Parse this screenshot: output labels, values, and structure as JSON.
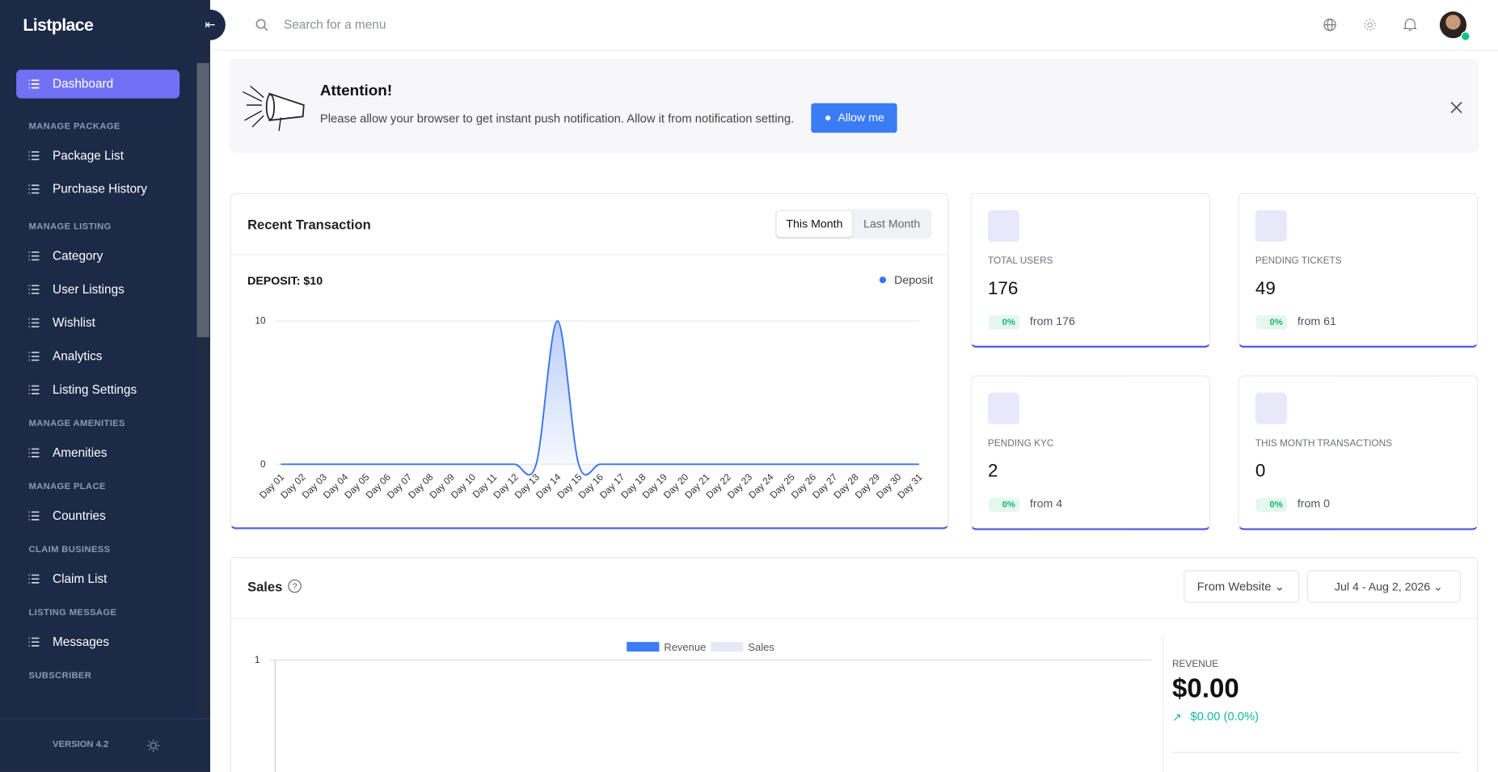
{
  "sidebar": {
    "logo": "Listplace",
    "dashboard": "Dashboard",
    "groups": [
      {
        "title": "MANAGE PACKAGE",
        "items": [
          "Package List",
          "Purchase History"
        ]
      },
      {
        "title": "MANAGE LISTING",
        "items": [
          "Category",
          "User Listings",
          "Wishlist",
          "Analytics",
          "Listing Settings"
        ]
      },
      {
        "title": "MANAGE AMENITIES",
        "items": [
          "Amenities"
        ]
      },
      {
        "title": "MANAGE PLACE",
        "items": [
          "Countries"
        ]
      },
      {
        "title": "CLAIM BUSINESS",
        "items": [
          "Claim List"
        ]
      },
      {
        "title": "LISTING MESSAGE",
        "items": [
          "Messages"
        ]
      },
      {
        "title": "SUBSCRIBER",
        "items": []
      }
    ],
    "version": "VERSION 4.2"
  },
  "topbar": {
    "search_placeholder": "Search for a menu"
  },
  "notice": {
    "title": "Attention!",
    "message": "Please allow your browser to get instant push notification. Allow it from notification setting.",
    "button": "Allow me"
  },
  "transactions": {
    "title": "Recent Transaction",
    "tabs": [
      "This Month",
      "Last Month"
    ],
    "deposit_label": "DEPOSIT: $10",
    "chart": {
      "type": "line",
      "categories": [
        "Day 01",
        "Day 02",
        "Day 03",
        "Day 04",
        "Day 05",
        "Day 06",
        "Day 07",
        "Day 08",
        "Day 09",
        "Day 10",
        "Day 11",
        "Day 12",
        "Day 13",
        "Day 14",
        "Day 15",
        "Day 16",
        "Day 17",
        "Day 18",
        "Day 19",
        "Day 20",
        "Day 21",
        "Day 22",
        "Day 23",
        "Day 24",
        "Day 25",
        "Day 26",
        "Day 27",
        "Day 28",
        "Day 29",
        "Day 30",
        "Day 31"
      ],
      "series": [
        {
          "name": "Deposit",
          "color": "#3b74f0",
          "values": [
            0,
            0,
            0,
            0,
            0,
            0,
            0,
            0,
            0,
            0,
            0,
            0,
            0,
            10,
            0,
            0,
            0,
            0,
            0,
            0,
            0,
            0,
            0,
            0,
            0,
            0,
            0,
            0,
            0,
            0,
            0
          ]
        }
      ],
      "ylim": [
        0,
        10
      ],
      "yticks": [
        0,
        10
      ],
      "grid": true
    }
  },
  "stats": [
    {
      "label": "TOTAL USERS",
      "value": 176,
      "change": "0%",
      "from": "from 176"
    },
    {
      "label": "PENDING TICKETS",
      "value": 49,
      "change": "0%",
      "from": "from 61"
    },
    {
      "label": "PENDING KYC",
      "value": 2,
      "change": "0%",
      "from": "from 4"
    },
    {
      "label": "THIS MONTH TRANSACTIONS",
      "value": 0,
      "change": "0%",
      "from": "from 0"
    }
  ],
  "sales": {
    "title": "Sales",
    "source": "From Website",
    "date_range": "Jul 4 - Aug 2, 2026",
    "chart": {
      "type": "bar",
      "series": [
        {
          "name": "Revenue",
          "color": "#3b7cf5"
        },
        {
          "name": "Sales",
          "color": "#e6e9f5"
        }
      ],
      "ylim": [
        0,
        1
      ],
      "yticks": [
        1
      ],
      "grid": true
    },
    "revenue": {
      "label": "REVENUE",
      "value": "$0.00",
      "change": "$0.00 (0.0%)"
    }
  }
}
